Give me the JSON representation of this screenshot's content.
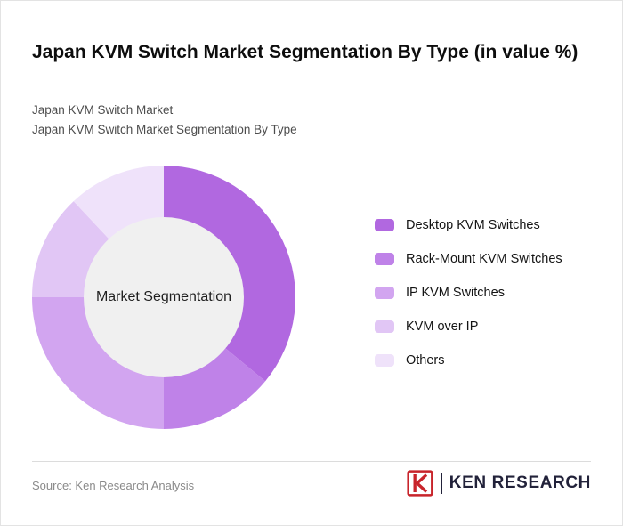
{
  "title": "Japan KVM Switch Market Segmentation By Type (in value %)",
  "subtitle_lines": [
    "Japan KVM Switch Market",
    "Japan KVM Switch Market Segmentation By Type"
  ],
  "chart_data": {
    "type": "pie",
    "donut": true,
    "title": "Japan KVM Switch Market Segmentation By Type (in value %)",
    "center_label": "Market Segmentation",
    "center_fill": "#f0f0f0",
    "start_angle_deg": -90,
    "direction": "clockwise",
    "legend_position": "right",
    "segments": [
      {
        "label": "Desktop KVM Switches",
        "value": 36,
        "color": "#b168e0"
      },
      {
        "label": "Rack-Mount KVM Switches",
        "value": 14,
        "color": "#bf82e8"
      },
      {
        "label": "IP KVM Switches",
        "value": 25,
        "color": "#d2a5f0"
      },
      {
        "label": "KVM over IP",
        "value": 13,
        "color": "#e1c6f5"
      },
      {
        "label": "Others",
        "value": 12,
        "color": "#efe2fa"
      }
    ]
  },
  "footer": {
    "source": "Source: Ken Research Analysis",
    "logo_k": "K",
    "logo_text": "KEN RESEARCH",
    "logo_red": "#c8242b",
    "logo_dark": "#22223a"
  }
}
